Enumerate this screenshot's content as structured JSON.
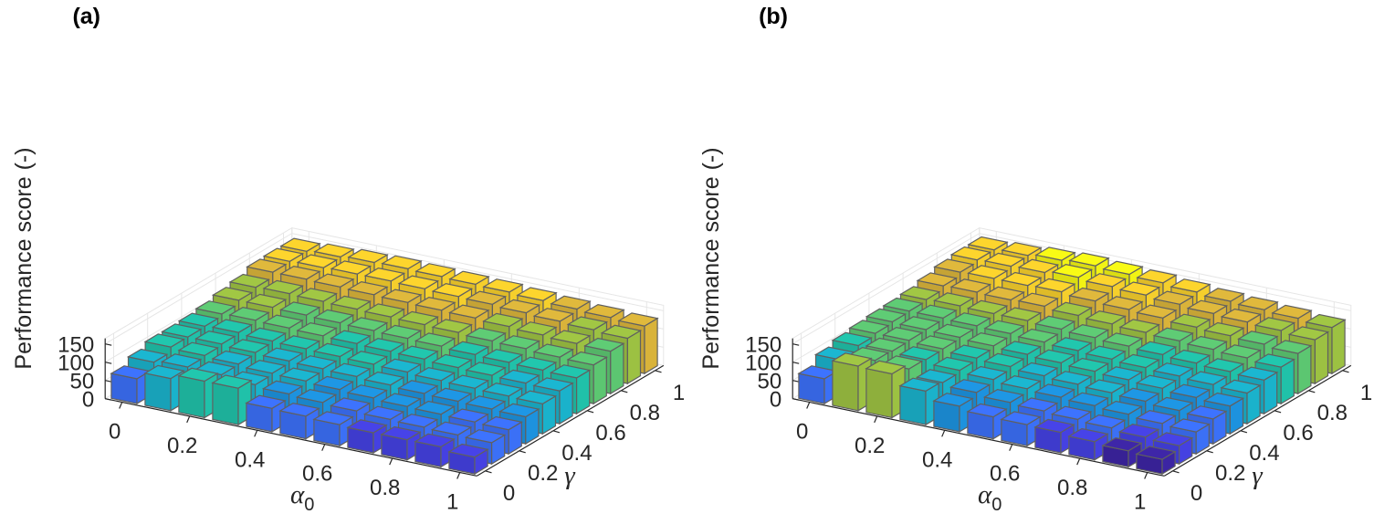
{
  "colors": {
    "colormap": [
      "#3e26a8",
      "#4743e8",
      "#3d73fe",
      "#1e97e5",
      "#1bb7d1",
      "#21c7ae",
      "#5fcc75",
      "#a1c744",
      "#e0b93c",
      "#fdd52d",
      "#f9fb15"
    ],
    "edge": "#606060",
    "grid": "#e6e6e6",
    "axis": "#262626"
  },
  "chart_data": [
    {
      "type": "bar3d",
      "panel_label": "(a)",
      "zlabel": "Performance score (-)",
      "xlabel_main": "α",
      "xlabel_sub": "0",
      "ylabel": "γ",
      "x_ticks": [
        "0",
        "0.2",
        "0.4",
        "0.6",
        "0.8",
        "1"
      ],
      "y_ticks": [
        "0",
        "0.2",
        "0.4",
        "0.6",
        "0.8",
        "1"
      ],
      "z_ticks": [
        "0",
        "50",
        "100",
        "150"
      ],
      "zlim": [
        0,
        165
      ],
      "alpha0": [
        0,
        0.1,
        0.2,
        0.3,
        0.4,
        0.5,
        0.6,
        0.7,
        0.8,
        0.9,
        1
      ],
      "gamma": [
        0,
        0.1,
        0.2,
        0.3,
        0.4,
        0.5,
        0.6,
        0.7,
        0.8,
        0.9,
        1
      ],
      "values": [
        [
          68,
          86,
          100,
          100,
          102,
          108,
          118,
          126,
          140,
          142,
          142
        ],
        [
          88,
          92,
          96,
          100,
          104,
          110,
          118,
          128,
          140,
          144,
          146
        ],
        [
          100,
          90,
          92,
          96,
          100,
          108,
          116,
          126,
          138,
          146,
          150
        ],
        [
          100,
          82,
          86,
          92,
          98,
          106,
          114,
          124,
          136,
          146,
          152
        ],
        [
          64,
          76,
          84,
          90,
          96,
          104,
          112,
          122,
          134,
          144,
          150
        ],
        [
          62,
          72,
          80,
          88,
          94,
          102,
          110,
          120,
          132,
          142,
          148
        ],
        [
          58,
          68,
          76,
          84,
          92,
          100,
          108,
          118,
          130,
          140,
          146
        ],
        [
          55,
          64,
          72,
          80,
          88,
          96,
          104,
          114,
          126,
          136,
          142
        ],
        [
          55,
          62,
          70,
          78,
          86,
          94,
          102,
          112,
          122,
          132,
          138
        ],
        [
          55,
          60,
          68,
          76,
          84,
          92,
          100,
          108,
          118,
          128,
          134
        ],
        [
          46,
          58,
          66,
          74,
          82,
          90,
          98,
          106,
          116,
          124,
          130
        ]
      ]
    },
    {
      "type": "bar3d",
      "panel_label": "(b)",
      "zlabel": "Performance score (-)",
      "xlabel_main": "α",
      "xlabel_sub": "0",
      "ylabel": "γ",
      "x_ticks": [
        "0",
        "0.2",
        "0.4",
        "0.6",
        "0.8",
        "1"
      ],
      "y_ticks": [
        "0",
        "0.2",
        "0.4",
        "0.6",
        "0.8",
        "1"
      ],
      "z_ticks": [
        "0",
        "50",
        "100",
        "150"
      ],
      "zlim": [
        0,
        165
      ],
      "alpha0": [
        0,
        0.1,
        0.2,
        0.3,
        0.4,
        0.5,
        0.6,
        0.7,
        0.8,
        0.9,
        1
      ],
      "gamma": [
        0,
        0.1,
        0.2,
        0.3,
        0.4,
        0.5,
        0.6,
        0.7,
        0.8,
        0.9,
        1
      ],
      "values": [
        [
          68,
          92,
          104,
          110,
          114,
          116,
          120,
          130,
          140,
          146,
          146
        ],
        [
          122,
          110,
          108,
          110,
          112,
          116,
          122,
          132,
          142,
          148,
          150
        ],
        [
          120,
          106,
          104,
          106,
          110,
          114,
          120,
          130,
          142,
          150,
          156
        ],
        [
          92,
          88,
          94,
          100,
          106,
          112,
          120,
          132,
          144,
          156,
          160
        ],
        [
          70,
          80,
          88,
          96,
          102,
          108,
          116,
          126,
          138,
          150,
          156
        ],
        [
          60,
          72,
          82,
          90,
          98,
          104,
          112,
          122,
          134,
          146,
          152
        ],
        [
          58,
          68,
          78,
          86,
          94,
          100,
          108,
          118,
          130,
          140,
          146
        ],
        [
          56,
          64,
          74,
          82,
          90,
          96,
          104,
          114,
          124,
          134,
          140
        ],
        [
          50,
          60,
          70,
          78,
          86,
          92,
          100,
          110,
          120,
          130,
          136
        ],
        [
          44,
          54,
          64,
          72,
          80,
          88,
          96,
          106,
          116,
          126,
          132
        ],
        [
          40,
          50,
          60,
          68,
          76,
          84,
          92,
          100,
          110,
          120,
          126
        ]
      ]
    }
  ]
}
